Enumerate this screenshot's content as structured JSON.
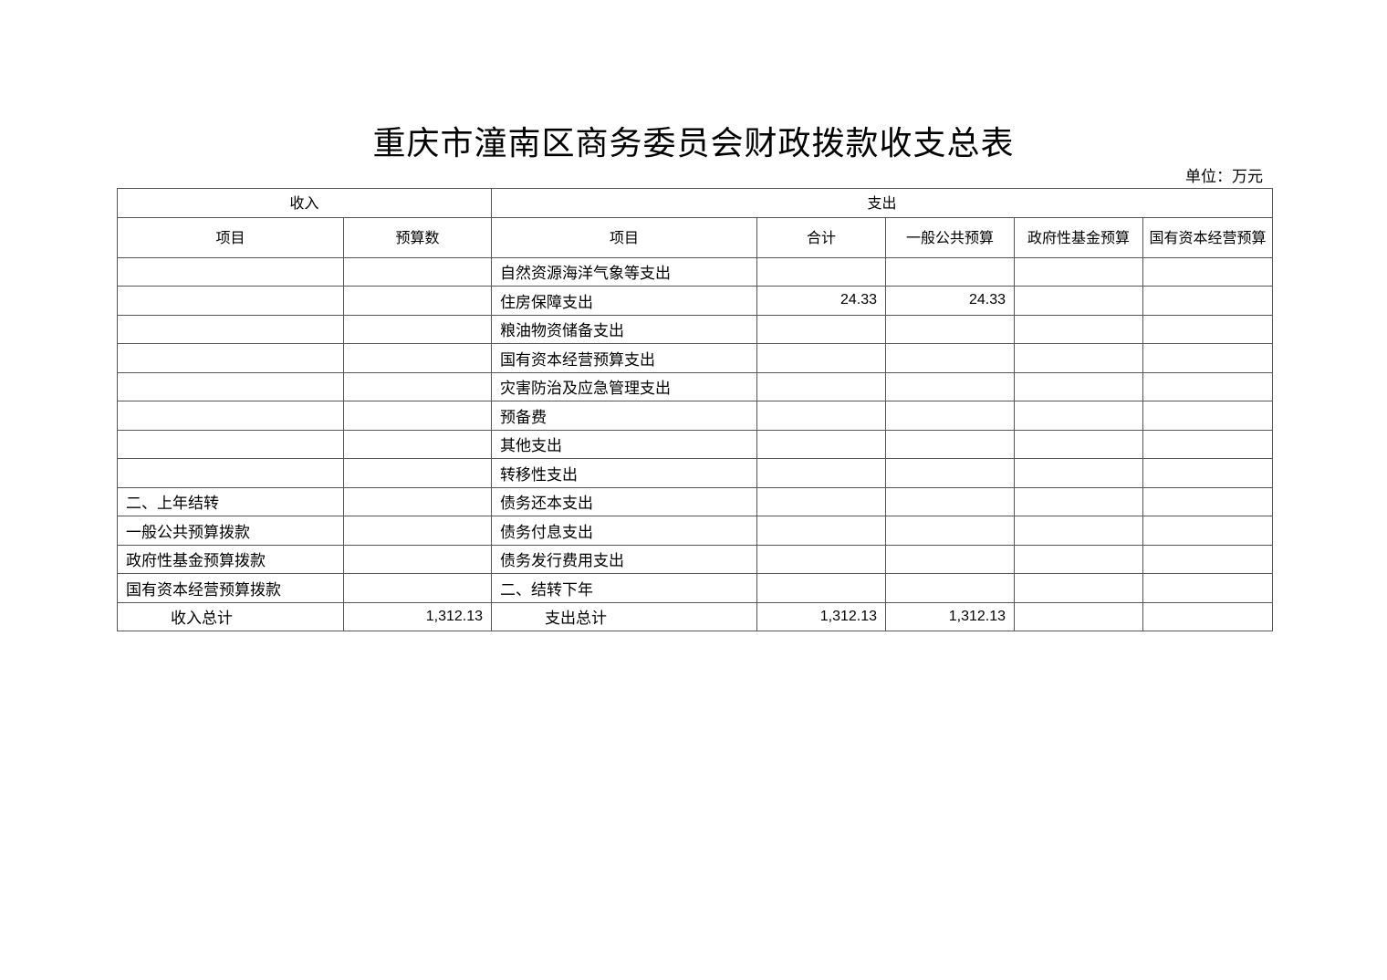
{
  "title": "重庆市潼南区商务委员会财政拨款收支总表",
  "unit": "单位：万元",
  "header": {
    "income": "收入",
    "expense": "支出",
    "cols": [
      "项目",
      "预算数",
      "项目",
      "合计",
      "一般公共预算",
      "政府性基金预算",
      "国有资本经营预算"
    ]
  },
  "rows": [
    [
      "",
      "",
      "自然资源海洋气象等支出",
      "",
      "",
      "",
      ""
    ],
    [
      "",
      "",
      "住房保障支出",
      "24.33",
      "24.33",
      "",
      ""
    ],
    [
      "",
      "",
      "粮油物资储备支出",
      "",
      "",
      "",
      ""
    ],
    [
      "",
      "",
      "国有资本经营预算支出",
      "",
      "",
      "",
      ""
    ],
    [
      "",
      "",
      "灾害防治及应急管理支出",
      "",
      "",
      "",
      ""
    ],
    [
      "",
      "",
      "预备费",
      "",
      "",
      "",
      ""
    ],
    [
      "",
      "",
      "其他支出",
      "",
      "",
      "",
      ""
    ],
    [
      "",
      "",
      "转移性支出",
      "",
      "",
      "",
      ""
    ],
    [
      "二、上年结转",
      "",
      "债务还本支出",
      "",
      "",
      "",
      ""
    ],
    [
      "一般公共预算拨款",
      "",
      "债务付息支出",
      "",
      "",
      "",
      ""
    ],
    [
      "政府性基金预算拨款",
      "",
      "债务发行费用支出",
      "",
      "",
      "",
      ""
    ],
    [
      "国有资本经营预算拨款",
      "",
      "二、结转下年",
      "",
      "",
      "",
      ""
    ],
    [
      "收入总计",
      "1,312.13",
      "支出总计",
      "1,312.13",
      "1,312.13",
      "",
      ""
    ]
  ]
}
